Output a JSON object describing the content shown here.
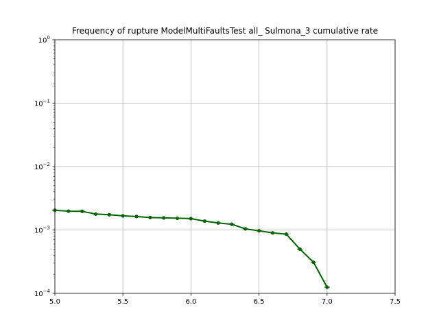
{
  "chart_data": {
    "type": "line",
    "title": "Frequency of rupture ModelMultiFaultsTest all_ Sulmona_3 cumulative rate",
    "xlabel": "",
    "ylabel": "",
    "xlim": [
      5.0,
      7.5
    ],
    "ylim": [
      0.0001,
      1
    ],
    "yscale": "log",
    "grid": true,
    "xticks": [
      "5.0",
      "5.5",
      "6.0",
      "6.5",
      "7.0",
      "7.5"
    ],
    "yticks": [
      {
        "value": 0.0001,
        "base": "10",
        "exp": "−4"
      },
      {
        "value": 0.001,
        "base": "10",
        "exp": "−3"
      },
      {
        "value": 0.01,
        "base": "10",
        "exp": "−2"
      },
      {
        "value": 0.1,
        "base": "10",
        "exp": "−1"
      },
      {
        "value": 1,
        "base": "10",
        "exp": "0"
      }
    ],
    "series": [
      {
        "color": "#006400",
        "x": [
          5.0,
          5.1,
          5.2,
          5.3,
          5.4,
          5.5,
          5.6,
          5.7,
          5.8,
          5.9,
          6.0,
          6.1,
          6.2,
          6.3,
          6.4,
          6.5,
          6.6,
          6.7,
          6.8,
          6.9,
          7.0
        ],
        "y": [
          0.00205,
          0.00198,
          0.00197,
          0.00178,
          0.00174,
          0.00167,
          0.00163,
          0.00157,
          0.00155,
          0.00153,
          0.00151,
          0.00138,
          0.00129,
          0.00123,
          0.00104,
          0.00097,
          0.0009,
          0.00086,
          0.0005,
          0.00031,
          0.000125
        ]
      }
    ]
  }
}
